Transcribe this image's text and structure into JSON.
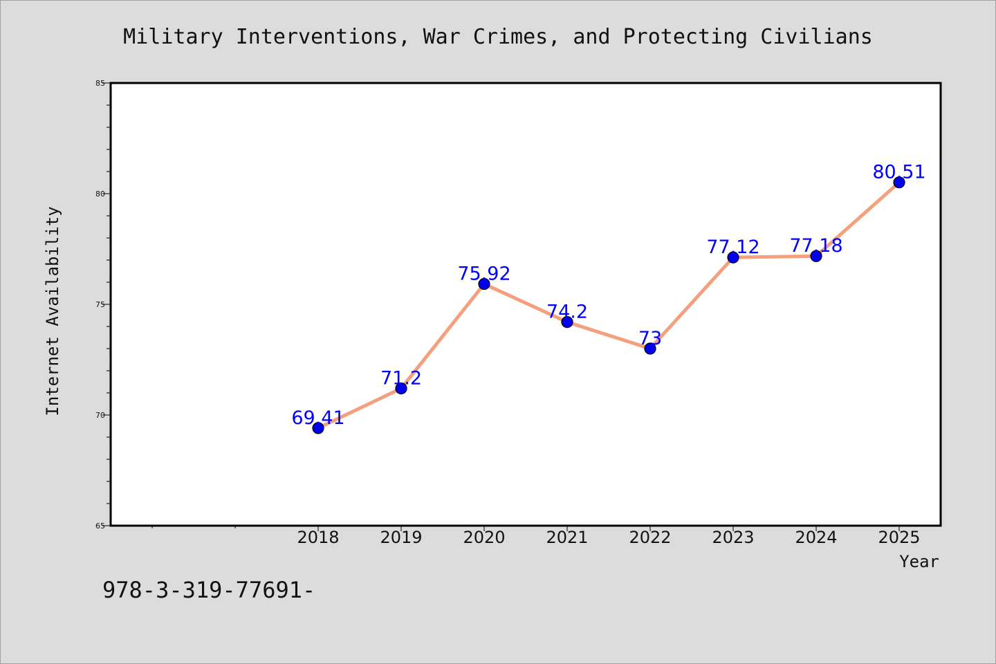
{
  "chart_data": {
    "type": "line",
    "title": "Military Interventions, War Crimes, and Protecting Civilians",
    "xlabel": "Year",
    "ylabel": "Internet Availability",
    "categories": [
      "2018",
      "2019",
      "2020",
      "2021",
      "2022",
      "2023",
      "2024",
      "2025"
    ],
    "series": [
      {
        "values": [
          69.41,
          71.2,
          75.92,
          74.2,
          73,
          77.12,
          77.18,
          80.51
        ],
        "data_labels": [
          "69.41",
          "71.2",
          "75.92",
          "74.2",
          "73",
          "77.12",
          "77.18",
          "80.51"
        ],
        "line_color": "#f4a07e",
        "marker_color": "#0000ee"
      }
    ],
    "ylim": [
      65,
      85
    ],
    "yticks": [
      "65",
      "70",
      "75",
      "80",
      "85"
    ],
    "grid": false,
    "legend": "none"
  },
  "footer": {
    "text": "978-3-319-77691-"
  }
}
